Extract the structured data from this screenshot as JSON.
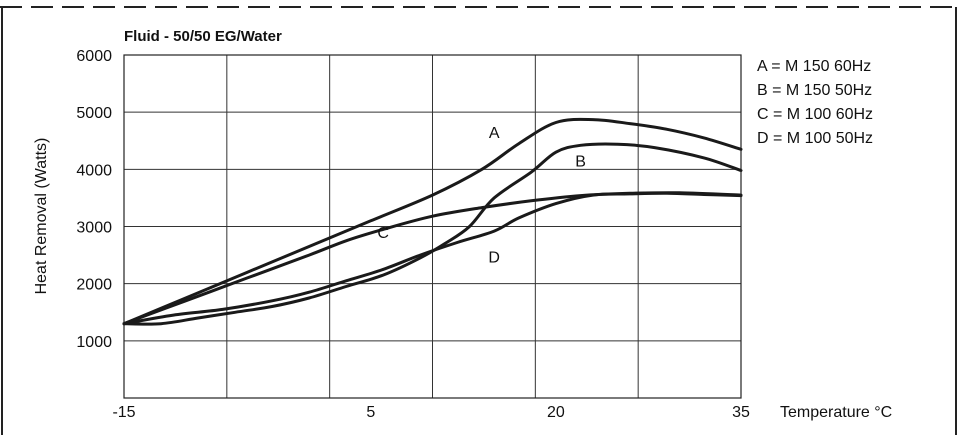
{
  "chart_data": {
    "type": "line",
    "title": "Fluid - 50/50  EG/Water",
    "xlabel": "Temperature °C",
    "ylabel": "Heat Removal (Watts)",
    "xlim": [
      -15,
      35
    ],
    "ylim": [
      0,
      6000
    ],
    "x_ticks": [
      "-15",
      "5",
      "20",
      "35"
    ],
    "y_ticks": [
      "6000",
      "5000",
      "4000",
      "3000",
      "2000",
      "1000"
    ],
    "grid": true,
    "legend_position": "top-right",
    "legend": [
      "A = M 150 60Hz",
      "B = M 150 50Hz",
      "C = M 100 60Hz",
      "D = M 100 50Hz"
    ],
    "series": [
      {
        "name": "A",
        "x": [
          -15,
          -10,
          -5,
          0,
          5,
          10,
          14,
          17,
          20,
          23,
          26,
          29,
          32,
          35
        ],
        "y": [
          1300,
          1750,
          2200,
          2650,
          3100,
          3550,
          4000,
          4450,
          4820,
          4870,
          4800,
          4700,
          4550,
          4350
        ]
      },
      {
        "name": "B",
        "x": [
          -15,
          -12,
          -9,
          -6,
          -3,
          0,
          3,
          6,
          9,
          11,
          13,
          15,
          18,
          20,
          22,
          25,
          28,
          32,
          35
        ],
        "y": [
          1300,
          1300,
          1400,
          1500,
          1600,
          1750,
          1950,
          2150,
          2450,
          2700,
          3000,
          3500,
          3950,
          4300,
          4420,
          4440,
          4380,
          4200,
          3980
        ]
      },
      {
        "name": "C",
        "x": [
          -15,
          -10,
          -5,
          0,
          3,
          6,
          10,
          14,
          18,
          22,
          26,
          30,
          35
        ],
        "y": [
          1300,
          1700,
          2100,
          2500,
          2750,
          2950,
          3180,
          3330,
          3450,
          3540,
          3580,
          3590,
          3550
        ]
      },
      {
        "name": "D",
        "x": [
          -15,
          -11,
          -7,
          -3,
          0,
          3,
          6,
          9,
          12,
          15,
          17,
          20,
          23,
          26,
          29,
          32,
          35
        ],
        "y": [
          1300,
          1450,
          1550,
          1700,
          1850,
          2050,
          2250,
          2500,
          2720,
          2920,
          3150,
          3400,
          3550,
          3570,
          3580,
          3560,
          3540
        ]
      }
    ],
    "annotations": [
      {
        "text": "A",
        "x": 15,
        "y": 4550
      },
      {
        "text": "B",
        "x": 22,
        "y": 4050
      },
      {
        "text": "C",
        "x": 6,
        "y": 2800
      },
      {
        "text": "D",
        "x": 15,
        "y": 2370
      }
    ]
  }
}
